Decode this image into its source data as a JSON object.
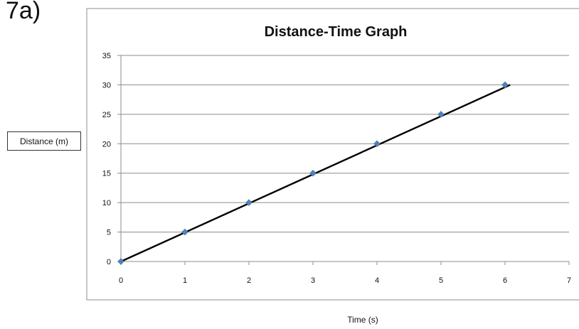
{
  "figure_label": "7a)",
  "colors": {
    "marker": "#4F81BD",
    "trendline": "#000000",
    "grid": "#8c8c8c",
    "frame": "#8c8c8c"
  },
  "chart_data": {
    "type": "scatter",
    "title": "Distance-Time Graph",
    "xlabel": "Time (s)",
    "ylabel": "Distance (m)",
    "x": [
      0,
      1,
      2,
      3,
      4,
      5,
      6
    ],
    "y": [
      0,
      5,
      10,
      15,
      20,
      25,
      30
    ],
    "xlim": [
      0,
      7
    ],
    "ylim": [
      0,
      35
    ],
    "xticks": [
      "0",
      "1",
      "2",
      "3",
      "4",
      "5",
      "6",
      "7"
    ],
    "yticks": [
      "0",
      "5",
      "10",
      "15",
      "20",
      "25",
      "30",
      "35"
    ],
    "marker": "diamond",
    "trendline": {
      "type": "linear",
      "slope": 5,
      "intercept": 0
    },
    "grid": "horizontal",
    "legend": "none"
  }
}
